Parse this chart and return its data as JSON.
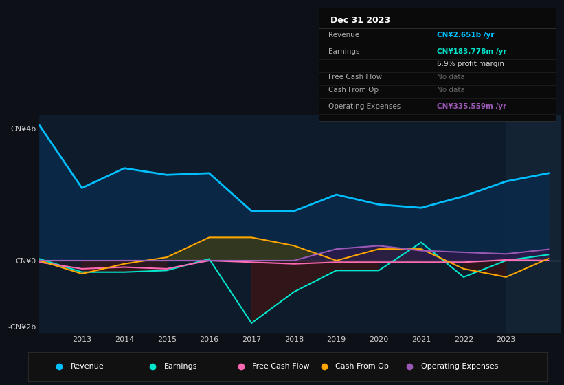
{
  "background_color": "#0d1117",
  "chart_bg": "#0d1b2a",
  "years": [
    2012,
    2013,
    2014,
    2015,
    2016,
    2017,
    2018,
    2019,
    2020,
    2021,
    2022,
    2023,
    2024
  ],
  "revenue": [
    4.1,
    2.2,
    2.8,
    2.6,
    2.65,
    1.5,
    1.5,
    2.0,
    1.7,
    1.6,
    1.95,
    2.4,
    2.65
  ],
  "earnings": [
    0.05,
    -0.35,
    -0.35,
    -0.3,
    0.05,
    -1.9,
    -0.95,
    -0.3,
    -0.3,
    0.55,
    -0.5,
    0.0,
    0.18
  ],
  "free_cash_flow": [
    -0.05,
    -0.25,
    -0.2,
    -0.25,
    0.0,
    -0.05,
    -0.1,
    -0.05,
    -0.05,
    -0.05,
    -0.05,
    0.02,
    0.0
  ],
  "cash_from_op": [
    0.0,
    -0.4,
    -0.1,
    0.1,
    0.7,
    0.7,
    0.45,
    0.0,
    0.35,
    0.35,
    -0.25,
    -0.5,
    0.06
  ],
  "op_expenses": [
    0.0,
    0.0,
    0.0,
    0.0,
    0.0,
    0.0,
    0.0,
    0.35,
    0.45,
    0.3,
    0.25,
    0.2,
    0.34
  ],
  "revenue_color": "#00bfff",
  "earnings_color": "#00e5cc",
  "free_cash_flow_color": "#ff69b4",
  "cash_from_op_color": "#ffa500",
  "op_expenses_color": "#9b59b6",
  "ylim_min": -2.2,
  "ylim_max": 4.4,
  "grid_color": "#2a3a4a",
  "zero_line_color": "#ffffff",
  "legend_items": [
    [
      "Revenue",
      "#00bfff"
    ],
    [
      "Earnings",
      "#00e5cc"
    ],
    [
      "Free Cash Flow",
      "#ff69b4"
    ],
    [
      "Cash From Op",
      "#ffa500"
    ],
    [
      "Operating Expenses",
      "#9b59b6"
    ]
  ]
}
